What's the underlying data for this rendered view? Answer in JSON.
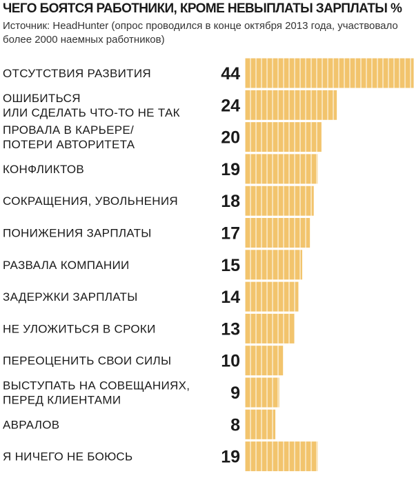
{
  "colors": {
    "bar": "#f2c46d",
    "bar_stroke": "#ffffff"
  },
  "chart_data": {
    "type": "bar",
    "orientation": "horizontal",
    "title": "ЧЕГО БОЯТСЯ РАБОТНИКИ, КРОМЕ НЕВЫПЛАТЫ ЗАРПЛАТЫ %",
    "source": "Источник: HeadHunter (опрос проводился в конце октября 2013 года, участвовало более 2000 наемных работников)",
    "categories": [
      [
        "ОТСУТСТВИЯ РАЗВИТИЯ"
      ],
      [
        "ОШИБИТЬСЯ",
        "ИЛИ СДЕЛАТЬ ЧТО-ТО НЕ ТАК"
      ],
      [
        "ПРОВАЛА В КАРЬЕРЕ/",
        "ПОТЕРИ АВТОРИТЕТА"
      ],
      [
        "КОНФЛИКТОВ"
      ],
      [
        "СОКРАЩЕНИЯ, УВОЛЬНЕНИЯ"
      ],
      [
        "ПОНИЖЕНИЯ ЗАРПЛАТЫ"
      ],
      [
        "РАЗВАЛА КОМПАНИИ"
      ],
      [
        "ЗАДЕРЖКИ ЗАРПЛАТЫ"
      ],
      [
        "НЕ УЛОЖИТЬСЯ В СРОКИ"
      ],
      [
        "ПЕРЕОЦЕНИТЬ СВОИ СИЛЫ"
      ],
      [
        "ВЫСТУПАТЬ НА СОВЕЩАНИЯХ,",
        "ПЕРЕД КЛИЕНТАМИ"
      ],
      [
        "АВРАЛОВ"
      ],
      [
        "Я НИЧЕГО НЕ БОЮСЬ"
      ]
    ],
    "values": [
      44,
      24,
      20,
      19,
      18,
      17,
      15,
      14,
      13,
      10,
      9,
      8,
      19
    ],
    "xlim": [
      0,
      44
    ],
    "grid": false,
    "legend": "none"
  }
}
